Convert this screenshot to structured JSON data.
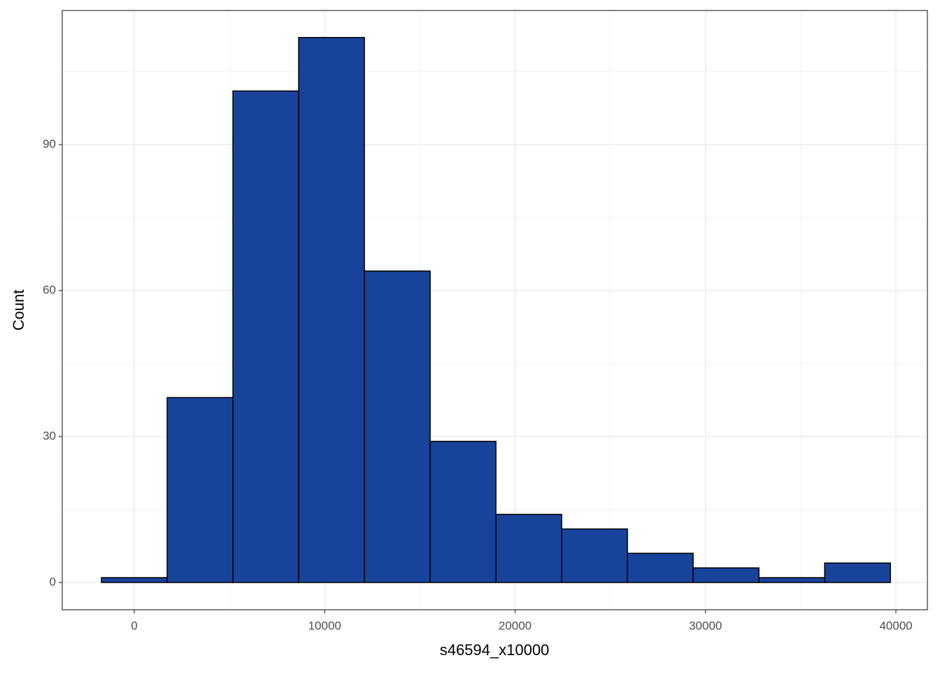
{
  "chart_data": {
    "type": "histogram",
    "x_label": "s46594_x10000",
    "y_label": "Count",
    "bins": [
      -1726,
      1727,
      5180,
      8633,
      12086,
      15539,
      18992,
      22445,
      25898,
      29351,
      32804,
      36257,
      39710
    ],
    "counts": [
      1,
      38,
      101,
      112,
      64,
      29,
      14,
      11,
      6,
      3,
      1,
      4
    ],
    "color": "#18439a",
    "edge_color": "#000000",
    "xlim": [
      -3783,
      41653
    ],
    "xticks": [
      0,
      10000,
      20000,
      30000,
      40000
    ],
    "minor_xticks": [
      5000,
      15000,
      25000,
      35000
    ],
    "ylim": [
      -5.6,
      117.55
    ],
    "yticks": [
      0,
      30,
      60,
      90
    ],
    "minor_yticks": [
      15,
      45,
      75,
      105
    ],
    "grid": true
  }
}
